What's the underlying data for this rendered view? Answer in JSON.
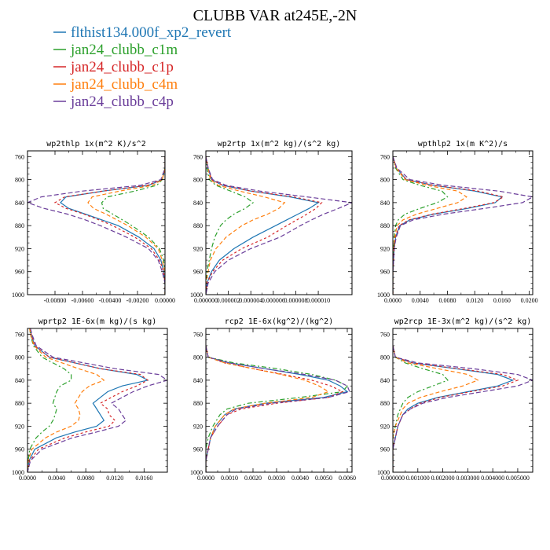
{
  "title": "CLUBB VAR at245E,-2N",
  "legend": [
    {
      "name": "flthist134.000f_xp2_revert",
      "color": "#1f77b4",
      "dash": "none"
    },
    {
      "name": "jan24_clubb_c1m",
      "color": "#2ca02c",
      "dash": "6 3 2 3"
    },
    {
      "name": "jan24_clubb_c1p",
      "color": "#d62728",
      "dash": "3 3"
    },
    {
      "name": "jan24_clubb_c4m",
      "color": "#ff7f0e",
      "dash": "5 3"
    },
    {
      "name": "jan24_clubb_c4p",
      "color": "#6a3d9a",
      "dash": "6 3"
    }
  ],
  "chart_data": [
    {
      "type": "line",
      "title": "wp2thlp  1x(m^2 K)/s^2",
      "xlim": [
        -0.01,
        0.0
      ],
      "ylim": [
        1000,
        750
      ],
      "xticks": [
        -0.008,
        -0.006,
        -0.004,
        -0.002,
        0.0
      ],
      "xtick_labels": [
        "-0.00800",
        "-0.00600",
        "-0.00400",
        "-0.00200",
        "0.00000"
      ],
      "yticks": [
        760,
        800,
        840,
        880,
        920,
        960,
        1000
      ],
      "y": [
        760,
        780,
        800,
        810,
        820,
        830,
        840,
        850,
        860,
        870,
        880,
        900,
        920,
        940,
        960,
        980,
        1000
      ],
      "series": [
        {
          "name": "flthist134.000f_xp2_revert",
          "values": [
            0,
            0,
            -0.0002,
            -0.0012,
            -0.0045,
            -0.0072,
            -0.0076,
            -0.007,
            -0.0058,
            -0.0046,
            -0.0034,
            -0.0019,
            -0.0008,
            -0.0003,
            -0.0001,
            0,
            0
          ]
        },
        {
          "name": "jan24_clubb_c1m",
          "values": [
            0,
            0,
            -0.0002,
            -0.0006,
            -0.0022,
            -0.0042,
            -0.0046,
            -0.0045,
            -0.0038,
            -0.0031,
            -0.0024,
            -0.0012,
            -0.0004,
            -0.0001,
            0,
            0,
            0
          ]
        },
        {
          "name": "jan24_clubb_c1p",
          "values": [
            0,
            0,
            -0.0002,
            -0.0013,
            -0.0045,
            -0.0073,
            -0.008,
            -0.0072,
            -0.0059,
            -0.0048,
            -0.0038,
            -0.0022,
            -0.001,
            -0.0004,
            -0.0001,
            0,
            0
          ]
        },
        {
          "name": "jan24_clubb_c4m",
          "values": [
            0,
            0,
            -0.0002,
            -0.0009,
            -0.0033,
            -0.0053,
            -0.0056,
            -0.0052,
            -0.0043,
            -0.0035,
            -0.0027,
            -0.0014,
            -0.0005,
            -0.0002,
            0,
            0,
            0
          ]
        },
        {
          "name": "jan24_clubb_c4p",
          "values": [
            0,
            0,
            -0.0003,
            -0.0018,
            -0.006,
            -0.009,
            -0.01,
            -0.0088,
            -0.0071,
            -0.0058,
            -0.0047,
            -0.0028,
            -0.0012,
            -0.0005,
            -0.0002,
            0,
            0
          ]
        }
      ]
    },
    {
      "type": "line",
      "title": "wp2rtp  1x(m^2 kg)/(s^2 kg)",
      "xlim": [
        0.0,
        1.3e-05
      ],
      "ylim": [
        1000,
        750
      ],
      "xticks": [
        0.0,
        2e-06,
        4e-06,
        6e-06,
        8e-06,
        1e-05
      ],
      "xtick_labels": [
        "0.000000",
        "0.000002",
        "0.000004",
        "0.000006",
        "0.000008",
        "0.000010"
      ],
      "yticks": [
        760,
        800,
        840,
        880,
        920,
        960,
        1000
      ],
      "y": [
        760,
        780,
        800,
        810,
        820,
        830,
        840,
        850,
        860,
        870,
        880,
        900,
        920,
        940,
        960,
        980,
        1000
      ],
      "series": [
        {
          "name": "flthist134.000f_xp2_revert",
          "values": [
            0,
            2e-07,
            5e-07,
            1.5e-06,
            4e-06,
            7.5e-06,
            1e-05,
            9.2e-06,
            8.2e-06,
            7.2e-06,
            6.2e-06,
            4.2e-06,
            2.5e-06,
            1.2e-06,
            5e-07,
            1e-07,
            0
          ]
        },
        {
          "name": "jan24_clubb_c1m",
          "values": [
            0,
            1e-07,
            3e-07,
            9e-07,
            2.2e-06,
            3.5e-06,
            4.2e-06,
            3.5e-06,
            2.5e-06,
            1.8e-06,
            1.3e-06,
            8e-07,
            5e-07,
            3e-07,
            1e-07,
            0,
            0
          ]
        },
        {
          "name": "jan24_clubb_c1p",
          "values": [
            0,
            2e-07,
            5e-07,
            1.5e-06,
            4e-06,
            7.8e-06,
            1.03e-05,
            9.8e-06,
            9e-06,
            8.1e-06,
            7.2e-06,
            5.5e-06,
            3.2e-06,
            1.5e-06,
            6e-07,
            1e-07,
            0
          ]
        },
        {
          "name": "jan24_clubb_c4m",
          "values": [
            0,
            2e-07,
            4e-07,
            1.1e-06,
            3e-06,
            5.2e-06,
            7e-06,
            6.5e-06,
            5.5e-06,
            4.2e-06,
            3.2e-06,
            1.8e-06,
            9e-07,
            4e-07,
            2e-07,
            0,
            0
          ]
        },
        {
          "name": "jan24_clubb_c4p",
          "values": [
            0,
            2e-07,
            6e-07,
            1.8e-06,
            4.8e-06,
            9e-06,
            1.3e-05,
            1.18e-05,
            1.05e-05,
            9.4e-06,
            8.4e-06,
            6.6e-06,
            4e-06,
            2e-06,
            8e-07,
            2e-07,
            0
          ]
        }
      ]
    },
    {
      "type": "line",
      "title": "wpthlp2  1x(m K^2)/s",
      "xlim": [
        0.0,
        0.0205
      ],
      "ylim": [
        1000,
        750
      ],
      "xticks": [
        0.0,
        0.004,
        0.008,
        0.012,
        0.016,
        0.02
      ],
      "xtick_labels": [
        "0.0000",
        "0.0040",
        "0.0080",
        "0.0120",
        "0.0160",
        "0.0200"
      ],
      "yticks": [
        760,
        800,
        840,
        880,
        920,
        960,
        1000
      ],
      "y": [
        760,
        780,
        800,
        810,
        820,
        830,
        840,
        850,
        860,
        870,
        880,
        900,
        920,
        940,
        960,
        980,
        1000
      ],
      "series": [
        {
          "name": "flthist134.000f_xp2_revert",
          "values": [
            0,
            0.0005,
            0.002,
            0.006,
            0.012,
            0.016,
            0.015,
            0.011,
            0.006,
            0.0025,
            0.001,
            0.0004,
            0.0002,
            0.0001,
            0,
            0,
            0
          ]
        },
        {
          "name": "jan24_clubb_c1m",
          "values": [
            0,
            0.0004,
            0.0015,
            0.004,
            0.0072,
            0.008,
            0.0065,
            0.004,
            0.0018,
            0.0008,
            0.0004,
            0.0002,
            0.0001,
            0,
            0,
            0,
            0
          ]
        },
        {
          "name": "jan24_clubb_c1p",
          "values": [
            0,
            0.0005,
            0.002,
            0.006,
            0.0125,
            0.0162,
            0.0148,
            0.0105,
            0.0058,
            0.0024,
            0.0009,
            0.0004,
            0.0002,
            0.0001,
            0,
            0,
            0
          ]
        },
        {
          "name": "jan24_clubb_c4m",
          "values": [
            0,
            0.0005,
            0.0018,
            0.005,
            0.0095,
            0.0108,
            0.0095,
            0.0065,
            0.0035,
            0.0015,
            0.0006,
            0.0003,
            0.0001,
            0,
            0,
            0,
            0
          ]
        },
        {
          "name": "jan24_clubb_c4p",
          "values": [
            0,
            0.0006,
            0.0025,
            0.0075,
            0.0155,
            0.0205,
            0.019,
            0.0135,
            0.0075,
            0.003,
            0.0011,
            0.0005,
            0.0002,
            0.0001,
            0,
            0,
            0
          ]
        }
      ]
    },
    {
      "type": "line",
      "title": "wprtp2  1E-6x(m kg)/(s kg)",
      "xlim": [
        0.0,
        0.0192
      ],
      "ylim": [
        1000,
        750
      ],
      "xticks": [
        0.0,
        0.004,
        0.008,
        0.012,
        0.016
      ],
      "xtick_labels": [
        "0.0000",
        "0.0040",
        "0.0080",
        "0.0120",
        "0.0160"
      ],
      "yticks": [
        760,
        800,
        840,
        880,
        920,
        960,
        1000
      ],
      "y": [
        750,
        760,
        780,
        800,
        820,
        830,
        840,
        850,
        860,
        880,
        890,
        900,
        910,
        920,
        930,
        940,
        960,
        980,
        1000
      ],
      "series": [
        {
          "name": "flthist134.000f_xp2_revert",
          "values": [
            0.0004,
            0.0005,
            0.001,
            0.003,
            0.01,
            0.015,
            0.0165,
            0.013,
            0.011,
            0.009,
            0.0095,
            0.01,
            0.0105,
            0.0095,
            0.0065,
            0.004,
            0.001,
            0.0002,
            0
          ]
        },
        {
          "name": "jan24_clubb_c1m",
          "values": [
            0.0003,
            0.0004,
            0.0008,
            0.002,
            0.005,
            0.006,
            0.006,
            0.0045,
            0.004,
            0.0035,
            0.004,
            0.0038,
            0.0035,
            0.003,
            0.002,
            0.0012,
            0.0003,
            0.0001,
            0
          ]
        },
        {
          "name": "jan24_clubb_c1p",
          "values": [
            0.0004,
            0.0005,
            0.001,
            0.003,
            0.01,
            0.0155,
            0.0165,
            0.015,
            0.013,
            0.01,
            0.011,
            0.0112,
            0.012,
            0.0112,
            0.008,
            0.0052,
            0.0015,
            0.0003,
            0
          ]
        },
        {
          "name": "jan24_clubb_c4m",
          "values": [
            0.0003,
            0.0004,
            0.0009,
            0.0025,
            0.007,
            0.0095,
            0.0105,
            0.0085,
            0.0075,
            0.0065,
            0.007,
            0.0072,
            0.007,
            0.006,
            0.004,
            0.0025,
            0.0006,
            0.0001,
            0
          ]
        },
        {
          "name": "jan24_clubb_c4p",
          "values": [
            0.0004,
            0.0006,
            0.0012,
            0.0035,
            0.012,
            0.018,
            0.0192,
            0.0165,
            0.0145,
            0.0115,
            0.0125,
            0.013,
            0.0135,
            0.0125,
            0.0095,
            0.0062,
            0.002,
            0.0004,
            0
          ]
        }
      ]
    },
    {
      "type": "line",
      "title": "rcp2  1E-6x(kg^2)/(kg^2)",
      "xlim": [
        0.0,
        0.0062
      ],
      "ylim": [
        1000,
        750
      ],
      "xticks": [
        0.0,
        0.001,
        0.002,
        0.003,
        0.004,
        0.005,
        0.006
      ],
      "xtick_labels": [
        "0.0000",
        "0.0010",
        "0.0020",
        "0.0030",
        "0.0040",
        "0.0050",
        "0.0060"
      ],
      "yticks": [
        760,
        800,
        840,
        880,
        920,
        960,
        1000
      ],
      "y": [
        780,
        800,
        810,
        820,
        830,
        840,
        850,
        860,
        870,
        880,
        890,
        900,
        920,
        940,
        960,
        980,
        1000
      ],
      "series": [
        {
          "name": "flthist134.000f_xp2_revert",
          "values": [
            0,
            0.0001,
            0.001,
            0.0025,
            0.004,
            0.0052,
            0.0057,
            0.006,
            0.005,
            0.0025,
            0.0012,
            0.0008,
            0.0004,
            0.0002,
            0.0001,
            0,
            0
          ]
        },
        {
          "name": "jan24_clubb_c1m",
          "values": [
            0,
            0.0001,
            0.0012,
            0.003,
            0.0045,
            0.0055,
            0.006,
            0.0058,
            0.004,
            0.0018,
            0.0009,
            0.0006,
            0.0003,
            0.0001,
            0,
            0,
            0
          ]
        },
        {
          "name": "jan24_clubb_c1p",
          "values": [
            0,
            0.0001,
            0.0008,
            0.002,
            0.0033,
            0.0045,
            0.0053,
            0.0058,
            0.0052,
            0.003,
            0.0015,
            0.0009,
            0.0005,
            0.0002,
            0.0001,
            0,
            0
          ]
        },
        {
          "name": "jan24_clubb_c4m",
          "values": [
            0,
            0.0001,
            0.0008,
            0.002,
            0.0032,
            0.0042,
            0.0048,
            0.0052,
            0.0045,
            0.0025,
            0.0012,
            0.0008,
            0.0004,
            0.0002,
            0.0001,
            0,
            0
          ]
        },
        {
          "name": "jan24_clubb_c4p",
          "values": [
            0,
            0.0001,
            0.001,
            0.0025,
            0.0042,
            0.0055,
            0.006,
            0.0061,
            0.0052,
            0.0028,
            0.0013,
            0.0009,
            0.0005,
            0.0002,
            0.0001,
            0,
            0
          ]
        }
      ]
    },
    {
      "type": "line",
      "title": "wp2rcp  1E-3x(m^2 kg)/(s^2 kg)",
      "xlim": [
        0.0,
        0.0056
      ],
      "ylim": [
        1000,
        750
      ],
      "xticks": [
        0.0,
        0.001,
        0.002,
        0.003,
        0.004,
        0.005
      ],
      "xtick_labels": [
        "0.000000",
        "0.001000",
        "0.002000",
        "0.003000",
        "0.004000",
        "0.005000"
      ],
      "yticks": [
        760,
        800,
        840,
        880,
        920,
        960,
        1000
      ],
      "y": [
        780,
        800,
        810,
        820,
        830,
        840,
        850,
        860,
        870,
        880,
        890,
        900,
        920,
        940,
        960,
        980,
        1000
      ],
      "series": [
        {
          "name": "flthist134.000f_xp2_revert",
          "values": [
            0,
            0.0001,
            0.0008,
            0.0025,
            0.0042,
            0.0048,
            0.0042,
            0.003,
            0.0018,
            0.001,
            0.0006,
            0.0004,
            0.0002,
            0.0001,
            0,
            0,
            0
          ]
        },
        {
          "name": "jan24_clubb_c1m",
          "values": [
            0,
            0.0001,
            0.0005,
            0.0012,
            0.002,
            0.0022,
            0.0016,
            0.001,
            0.0006,
            0.0004,
            0.0003,
            0.0002,
            0.0001,
            0,
            0,
            0,
            0
          ]
        },
        {
          "name": "jan24_clubb_c1p",
          "values": [
            0,
            0.0001,
            0.0008,
            0.0026,
            0.0044,
            0.005,
            0.0044,
            0.0031,
            0.0019,
            0.0011,
            0.0007,
            0.0004,
            0.0002,
            0.0001,
            0,
            0,
            0
          ]
        },
        {
          "name": "jan24_clubb_c4m",
          "values": [
            0,
            0.0001,
            0.0006,
            0.0018,
            0.003,
            0.0034,
            0.0028,
            0.0019,
            0.0011,
            0.0006,
            0.0004,
            0.0003,
            0.0001,
            0,
            0,
            0,
            0
          ]
        },
        {
          "name": "jan24_clubb_c4p",
          "values": [
            0,
            0.0001,
            0.001,
            0.0032,
            0.005,
            0.0056,
            0.005,
            0.0036,
            0.0022,
            0.0012,
            0.0007,
            0.0004,
            0.0002,
            0.0001,
            0,
            0,
            0
          ]
        }
      ]
    }
  ]
}
